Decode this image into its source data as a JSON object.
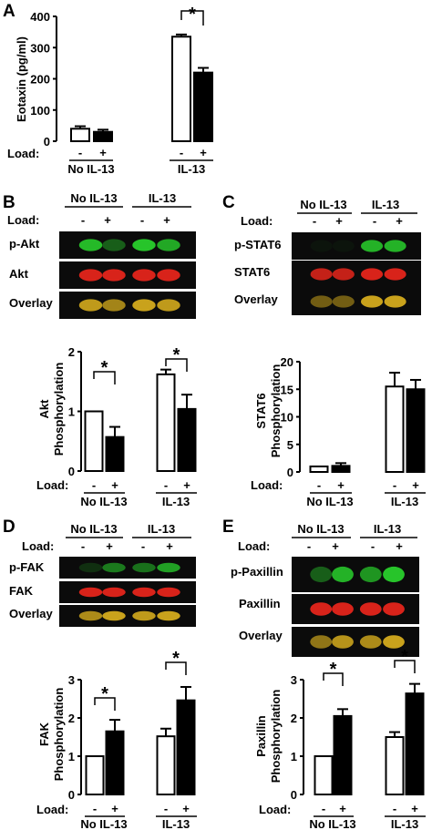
{
  "figure": {
    "panels": {
      "A": {
        "letter": "A",
        "ylabel": "Eotaxin (pg/ml)",
        "load_label": "Load:",
        "load_minus": "-",
        "load_plus": "+",
        "groups": [
          "No IL-13",
          "IL-13"
        ],
        "sig": "*"
      },
      "B": {
        "letter": "B",
        "blot_header": [
          "No IL-13",
          "IL-13"
        ],
        "load_label": "Load:",
        "rows": [
          "p-Akt",
          "Akt",
          "Overlay"
        ],
        "ylabel1": "Akt",
        "ylabel2": "Phosphorylation",
        "groups": [
          "No IL-13",
          "IL-13"
        ],
        "sig": "*"
      },
      "C": {
        "letter": "C",
        "blot_header": [
          "No IL-13",
          "IL-13"
        ],
        "load_label": "Load:",
        "rows": [
          "p-STAT6",
          "STAT6",
          "Overlay"
        ],
        "ylabel1": "STAT6",
        "ylabel2": "Phosphorylation",
        "groups": [
          "No IL-13",
          "IL-13"
        ]
      },
      "D": {
        "letter": "D",
        "blot_header": [
          "No IL-13",
          "IL-13"
        ],
        "load_label": "Load:",
        "rows": [
          "p-FAK",
          "FAK",
          "Overlay"
        ],
        "ylabel1": "FAK",
        "ylabel2": "Phosphorylation",
        "groups": [
          "No IL-13",
          "IL-13"
        ],
        "sig": "*"
      },
      "E": {
        "letter": "E",
        "blot_header": [
          "No IL-13",
          "IL-13"
        ],
        "load_label": "Load:",
        "rows": [
          "p-Paxillin",
          "Paxillin",
          "Overlay"
        ],
        "ylabel1": "Paxillin",
        "ylabel2": "Phosphorylation",
        "groups": [
          "No IL-13",
          "IL-13"
        ],
        "sig": "*"
      }
    },
    "colors": {
      "green_band": "#27c42a",
      "red_band": "#d8231a",
      "overlay_band": "#c9a21c",
      "blot_bg": "#0b0b0b"
    }
  },
  "chart_data": [
    {
      "panel": "A",
      "type": "bar",
      "ylabel": "Eotaxin (pg/ml)",
      "ylim": [
        0,
        400
      ],
      "yticks": [
        0,
        100,
        200,
        300,
        400
      ],
      "categories": [
        "No IL-13 -",
        "No IL-13 +",
        "IL-13 -",
        "IL-13 +"
      ],
      "load": [
        "-",
        "+",
        "-",
        "+"
      ],
      "values": [
        40,
        30,
        335,
        220
      ],
      "errors": [
        8,
        7,
        7,
        15
      ],
      "fill": [
        "white",
        "black",
        "white",
        "black"
      ],
      "significance": [
        {
          "between": [
            2,
            3
          ],
          "label": "*"
        }
      ]
    },
    {
      "panel": "B",
      "type": "bar",
      "ylabel": "Akt Phosphorylation",
      "ylim": [
        0,
        2
      ],
      "yticks": [
        0,
        1,
        2
      ],
      "categories": [
        "No IL-13 -",
        "No IL-13 +",
        "IL-13 -",
        "IL-13 +"
      ],
      "load": [
        "-",
        "+",
        "-",
        "+"
      ],
      "values": [
        1.0,
        0.57,
        1.62,
        1.04
      ],
      "errors": [
        0,
        0.17,
        0.08,
        0.24
      ],
      "fill": [
        "white",
        "black",
        "white",
        "black"
      ],
      "significance": [
        {
          "between": [
            0,
            1
          ],
          "label": "*"
        },
        {
          "between": [
            2,
            3
          ],
          "label": "*"
        }
      ]
    },
    {
      "panel": "C",
      "type": "bar",
      "ylabel": "STAT6 Phosphorylation",
      "ylim": [
        0,
        20
      ],
      "yticks": [
        0,
        5,
        10,
        15,
        20
      ],
      "categories": [
        "No IL-13 -",
        "No IL-13 +",
        "IL-13 -",
        "IL-13 +"
      ],
      "load": [
        "-",
        "+",
        "-",
        "+"
      ],
      "values": [
        1.0,
        1.1,
        15.5,
        15.0
      ],
      "errors": [
        0,
        0.5,
        2.5,
        1.7
      ],
      "fill": [
        "white",
        "black",
        "white",
        "black"
      ],
      "significance": []
    },
    {
      "panel": "D",
      "type": "bar",
      "ylabel": "FAK Phosphorylation",
      "ylim": [
        0,
        3
      ],
      "yticks": [
        0,
        1,
        2,
        3
      ],
      "categories": [
        "No IL-13 -",
        "No IL-13 +",
        "IL-13 -",
        "IL-13 +"
      ],
      "load": [
        "-",
        "+",
        "-",
        "+"
      ],
      "values": [
        1.0,
        1.65,
        1.52,
        2.46
      ],
      "errors": [
        0,
        0.3,
        0.2,
        0.35
      ],
      "fill": [
        "white",
        "black",
        "white",
        "black"
      ],
      "significance": [
        {
          "between": [
            0,
            1
          ],
          "label": "*"
        },
        {
          "between": [
            2,
            3
          ],
          "label": "*"
        }
      ]
    },
    {
      "panel": "E",
      "type": "bar",
      "ylabel": "Paxillin Phosphorylation",
      "ylim": [
        0,
        3
      ],
      "yticks": [
        0,
        1,
        2,
        3
      ],
      "categories": [
        "No IL-13 -",
        "No IL-13 +",
        "IL-13 -",
        "IL-13 +"
      ],
      "load": [
        "-",
        "+",
        "-",
        "+"
      ],
      "values": [
        1.0,
        2.05,
        1.5,
        2.64
      ],
      "errors": [
        0,
        0.18,
        0.13,
        0.25
      ],
      "fill": [
        "white",
        "black",
        "white",
        "black"
      ],
      "significance": [
        {
          "between": [
            0,
            1
          ],
          "label": "*"
        },
        {
          "between": [
            2,
            3
          ],
          "label": "*"
        }
      ]
    }
  ]
}
